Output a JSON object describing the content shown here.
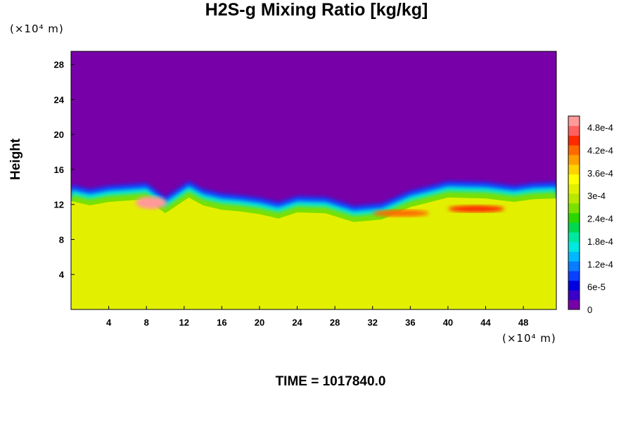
{
  "chart_data": {
    "type": "heatmap",
    "title": "H2S-g Mixing Ratio [kg/kg]",
    "xlabel": "",
    "ylabel": "Height",
    "x_unit": "(×10⁴ m)",
    "y_unit": "(×10⁴ m)",
    "x_ticks": [
      "4",
      "8",
      "12",
      "16",
      "20",
      "24",
      "28",
      "32",
      "36",
      "40",
      "44",
      "48"
    ],
    "y_ticks": [
      "4",
      "8",
      "12",
      "16",
      "20",
      "24",
      "28"
    ],
    "xlim": [
      0,
      51.5
    ],
    "ylim": [
      0,
      29.5
    ],
    "colorbar": {
      "min": 0,
      "max": 0.00051,
      "ticks": [
        "0",
        "6e-5",
        "1.2e-4",
        "1.8e-4",
        "2.4e-4",
        "3e-4",
        "3.6e-4",
        "4.2e-4",
        "4.8e-4"
      ],
      "tick_values": [
        0,
        6e-05,
        0.00012,
        0.00018,
        0.00024,
        0.0003,
        0.00036,
        0.00042,
        0.00048
      ],
      "colors": [
        "#7700a8",
        "#3a00c8",
        "#0000e0",
        "#0a40ff",
        "#0a7dff",
        "#00b8ff",
        "#00e8e0",
        "#00e8a0",
        "#00d850",
        "#2ad800",
        "#7ae000",
        "#b8e800",
        "#e2f000",
        "#ffff00",
        "#ffd200",
        "#ffa000",
        "#ff6a00",
        "#ff2a00",
        "#ff6060",
        "#ff9a9a"
      ]
    },
    "regions": {
      "upper_value": 0,
      "lower_value": 0.00033,
      "interface_height": [
        14,
        13.5,
        13.9,
        14.2,
        12.6,
        14.4,
        13.5,
        13.0,
        12.8,
        12.5,
        12.0,
        12.7,
        12.6,
        11.6,
        11.9,
        13.3,
        14.4,
        14.3,
        13.9,
        14.2,
        14.3
      ],
      "interface_x": [
        0,
        2,
        4,
        8,
        10,
        12.5,
        14,
        16,
        18,
        20,
        22,
        24,
        27,
        30,
        33,
        36,
        40,
        44,
        47,
        49,
        51.5
      ],
      "hotspots": [
        {
          "x": 8.5,
          "y": 12.2,
          "value": 0.0005
        },
        {
          "x": 43,
          "y": 11.5,
          "value": 0.00044
        },
        {
          "x": 35,
          "y": 11.0,
          "value": 0.00043
        }
      ]
    },
    "time_label": "TIME = 1017840.0"
  }
}
